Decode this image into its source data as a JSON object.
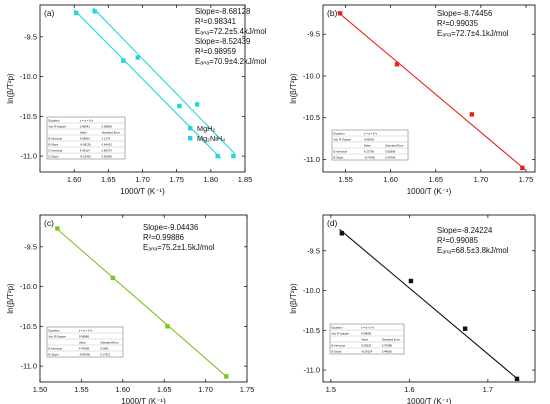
{
  "chart_data": [
    {
      "type": "scatter",
      "panel_label": "(a)",
      "xlabel": "1000/T (K⁻¹)",
      "ylabel": "ln(β/T²p)",
      "xlim": [
        1.55,
        1.85
      ],
      "ylim": [
        -11.2,
        -9.1
      ],
      "xticks": [
        "1.60",
        "1.65",
        "1.70",
        "1.75",
        "1.80",
        "1.85"
      ],
      "yticks": [
        "-9.5",
        "-10.0",
        "-10.5",
        "-11.0"
      ],
      "legend": {
        "position": "right",
        "entries": [
          "MgH₂",
          "Mg₂NiH₄"
        ]
      },
      "annotations": [
        "Slope=-8.68128",
        "R²=0.98341",
        "Eₐₙₐ=72.2±5.4kJ/mol",
        "Slope=-8.52439",
        "R²=0.98959",
        "Eₐₙₐ=70.9±4.2kJ/mol"
      ],
      "series": [
        {
          "name": "MgH₂",
          "color": "#22d6df",
          "marker": "square",
          "x": [
            1.603,
            1.672,
            1.754,
            1.81
          ],
          "y": [
            -9.2,
            -9.8,
            -10.37,
            -11.0
          ],
          "fit": {
            "x": [
              1.6,
              1.815
            ],
            "y": [
              -9.16,
              -11.03
            ]
          }
        },
        {
          "name": "Mg₂NiH₄",
          "color": "#22d6df",
          "marker": "square",
          "x": [
            1.63,
            1.693,
            1.78,
            1.833
          ],
          "y": [
            -9.18,
            -9.76,
            -10.35,
            -11.0
          ],
          "fit": {
            "x": [
              1.628,
              1.835
            ],
            "y": [
              -9.14,
              -10.97
            ]
          }
        }
      ],
      "inset_table": {
        "header": [
          "Equation",
          "y = a + b*x",
          ""
        ],
        "rows": [
          [
            "Adj. R-Square",
            "0.98341",
            "0.98959"
          ],
          [
            "",
            "Value",
            "Standard Error"
          ],
          [
            "B  Intercept",
            "4.66801",
            "1.1276"
          ],
          [
            "B  Slope",
            "-8.68128",
            "0.64415"
          ],
          [
            "D  Intercept",
            "4.49114",
            "0.86374"
          ],
          [
            "D  Slope",
            "-8.52439",
            "0.50568"
          ]
        ]
      }
    },
    {
      "type": "scatter",
      "panel_label": "(b)",
      "xlabel": "1000/T (K⁻¹)",
      "ylabel": "ln(β/T²p)",
      "xlim": [
        1.525,
        1.76
      ],
      "ylim": [
        -11.15,
        -9.15
      ],
      "xticks": [
        "1.55",
        "1.60",
        "1.65",
        "1.70",
        "1.75"
      ],
      "yticks": [
        "-9.5",
        "-10.0",
        "-10.5",
        "-11.0"
      ],
      "annotations": [
        "Slope=-8.74456",
        "R²=0.99035",
        "Eₐₙₐ=72.7±4.1kJ/mol"
      ],
      "series": [
        {
          "color": "#e8231b",
          "marker": "square",
          "x": [
            1.544,
            1.607,
            1.69,
            1.746
          ],
          "y": [
            -9.25,
            -9.86,
            -10.46,
            -11.1
          ],
          "fit": {
            "x": [
              1.541,
              1.749
            ],
            "y": [
              -9.23,
              -11.12
            ]
          }
        }
      ],
      "inset_table": {
        "header": [
          "Equation",
          "y = a + b*x",
          ""
        ],
        "rows": [
          [
            "Adj. R-Square",
            "0.99035",
            ""
          ],
          [
            "",
            "Value",
            "Standard Error"
          ],
          [
            "B  Intercept",
            "4.23795",
            "0.82898"
          ],
          [
            "B  Slope",
            "-8.74456",
            "0.49796"
          ]
        ]
      }
    },
    {
      "type": "scatter",
      "panel_label": "(c)",
      "xlabel": "1000/T (K⁻¹)",
      "ylabel": "ln(β/T²p)",
      "xlim": [
        1.5,
        1.75
      ],
      "ylim": [
        -11.2,
        -9.1
      ],
      "xticks": [
        "1.50",
        "1.55",
        "1.60",
        "1.65",
        "1.70",
        "1.75"
      ],
      "yticks": [
        "-9.5",
        "-10.0",
        "-10.5",
        "-11.0"
      ],
      "annotations": [
        "Slope=-9.04436",
        "R²=0.99886",
        "Eₐₙₐ=75.2±1.5kJ/mol"
      ],
      "series": [
        {
          "color": "#7cc520",
          "marker": "square",
          "x": [
            1.521,
            1.588,
            1.654,
            1.725
          ],
          "y": [
            -9.27,
            -9.89,
            -10.5,
            -11.13
          ],
          "fit": {
            "x": [
              1.52,
              1.725
            ],
            "y": [
              -9.27,
              -11.13
            ]
          }
        }
      ],
      "inset_table": {
        "header": [
          "Equation",
          "y = a + b*x",
          ""
        ],
        "rows": [
          [
            "Adj. R-Square",
            "0.99886",
            ""
          ],
          [
            "",
            "Value",
            "Standard Error"
          ],
          [
            "B  Intercept",
            "4.47899",
            "0.2861"
          ],
          [
            "B  Slope",
            "-9.04436",
            "0.17621"
          ]
        ]
      }
    },
    {
      "type": "scatter",
      "panel_label": "(d)",
      "xlabel": "1000/T (K⁻¹)",
      "ylabel": "ln(β/T²p)",
      "xlim": [
        1.49,
        1.76
      ],
      "ylim": [
        -11.15,
        -9.05
      ],
      "xticks": [
        "1.5",
        "1.6",
        "1.7"
      ],
      "yticks": [
        "-9.5",
        "-10.0",
        "-10.5",
        "-11.0"
      ],
      "annotations": [
        "Slope=-8.24224",
        "R²=0.99085",
        "Eₐₙₐ=68.5±3.8kJ/mol"
      ],
      "series": [
        {
          "color": "#111111",
          "marker": "square",
          "x": [
            1.514,
            1.602,
            1.671,
            1.737
          ],
          "y": [
            -9.28,
            -9.88,
            -10.48,
            -11.11
          ],
          "fit": {
            "x": [
              1.511,
              1.74
            ],
            "y": [
              -9.23,
              -11.13
            ]
          }
        }
      ],
      "inset_table": {
        "header": [
          "Equation",
          "y = a + b*x",
          ""
        ],
        "rows": [
          [
            "Adj. R-Square",
            "0.99085",
            ""
          ],
          [
            "",
            "Value",
            "Standard Error"
          ],
          [
            "B  Intercept",
            "3.29523",
            "0.70088"
          ],
          [
            "B  Slope",
            "-8.24224",
            "0.44656"
          ]
        ]
      }
    }
  ]
}
